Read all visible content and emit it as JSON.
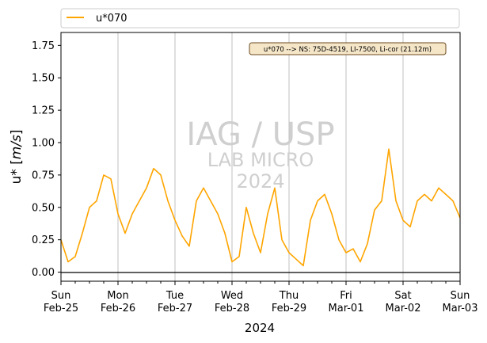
{
  "chart_data": {
    "type": "line",
    "xlabel": "2024",
    "ylabel_prefix": "u* [",
    "ylabel_unit": "m/s",
    "ylabel_suffix": "]",
    "ylim": [
      -0.07,
      1.85
    ],
    "xlim": [
      "2024-02-25T00:00",
      "2024-03-03T00:00"
    ],
    "yticks": [
      "0.00",
      "0.25",
      "0.50",
      "0.75",
      "1.00",
      "1.25",
      "1.50",
      "1.75"
    ],
    "yticks_values": [
      0,
      0.25,
      0.5,
      0.75,
      1.0,
      1.25,
      1.5,
      1.75
    ],
    "xticks": [
      {
        "day": "Sun",
        "date": "Feb-25"
      },
      {
        "day": "Mon",
        "date": "Feb-26"
      },
      {
        "day": "Tue",
        "date": "Feb-27"
      },
      {
        "day": "Wed",
        "date": "Feb-28"
      },
      {
        "day": "Thu",
        "date": "Feb-29"
      },
      {
        "day": "Fri",
        "date": "Mar-01"
      },
      {
        "day": "Sat",
        "date": "Mar-02"
      },
      {
        "day": "Sun",
        "date": "Mar-03"
      }
    ],
    "vertical_grid": true,
    "horizontal_grid": false,
    "zero_line": true,
    "legend_position": "top, above plot",
    "annotation": "u*070 --> NS: 75D-4519, LI-7500, Li-cor (21.12m)",
    "watermark": [
      "IAG / USP",
      "LAB MICRO",
      "2024"
    ],
    "series": [
      {
        "name": "u*070",
        "color": "#FFA500",
        "x": [
          "2024-02-25T00:00",
          "2024-02-25T03:00",
          "2024-02-25T06:00",
          "2024-02-25T09:00",
          "2024-02-25T12:00",
          "2024-02-25T15:00",
          "2024-02-25T18:00",
          "2024-02-25T21:00",
          "2024-02-26T00:00",
          "2024-02-26T03:00",
          "2024-02-26T06:00",
          "2024-02-26T09:00",
          "2024-02-26T12:00",
          "2024-02-26T15:00",
          "2024-02-26T18:00",
          "2024-02-26T21:00",
          "2024-02-27T00:00",
          "2024-02-27T03:00",
          "2024-02-27T06:00",
          "2024-02-27T09:00",
          "2024-02-27T12:00",
          "2024-02-27T15:00",
          "2024-02-27T18:00",
          "2024-02-27T21:00",
          "2024-02-28T00:00",
          "2024-02-28T03:00",
          "2024-02-28T06:00",
          "2024-02-28T09:00",
          "2024-02-28T12:00",
          "2024-02-28T15:00",
          "2024-02-28T18:00",
          "2024-02-28T21:00",
          "2024-02-29T00:00",
          "2024-02-29T03:00",
          "2024-02-29T06:00",
          "2024-02-29T09:00",
          "2024-02-29T12:00",
          "2024-02-29T15:00",
          "2024-02-29T18:00",
          "2024-02-29T21:00",
          "2024-03-01T00:00",
          "2024-03-01T03:00",
          "2024-03-01T06:00",
          "2024-03-01T09:00",
          "2024-03-01T12:00",
          "2024-03-01T15:00",
          "2024-03-01T18:00",
          "2024-03-01T21:00",
          "2024-03-02T00:00",
          "2024-03-02T03:00",
          "2024-03-02T06:00",
          "2024-03-02T09:00",
          "2024-03-02T12:00",
          "2024-03-02T15:00",
          "2024-03-02T18:00",
          "2024-03-02T21:00",
          "2024-03-03T00:00"
        ],
        "y": [
          0.25,
          0.08,
          0.12,
          0.3,
          0.5,
          0.55,
          0.75,
          0.72,
          0.45,
          0.3,
          0.45,
          0.55,
          0.65,
          0.8,
          0.75,
          0.55,
          0.4,
          0.28,
          0.2,
          0.55,
          0.65,
          0.55,
          0.45,
          0.3,
          0.08,
          0.12,
          0.5,
          0.3,
          0.15,
          0.45,
          0.65,
          0.25,
          0.15,
          0.1,
          0.05,
          0.4,
          0.55,
          0.6,
          0.45,
          0.25,
          0.15,
          0.18,
          0.08,
          0.22,
          0.48,
          0.55,
          0.95,
          0.55,
          0.4,
          0.35,
          0.55,
          0.6,
          0.55,
          0.65,
          0.6,
          0.55,
          0.42
        ]
      }
    ]
  }
}
